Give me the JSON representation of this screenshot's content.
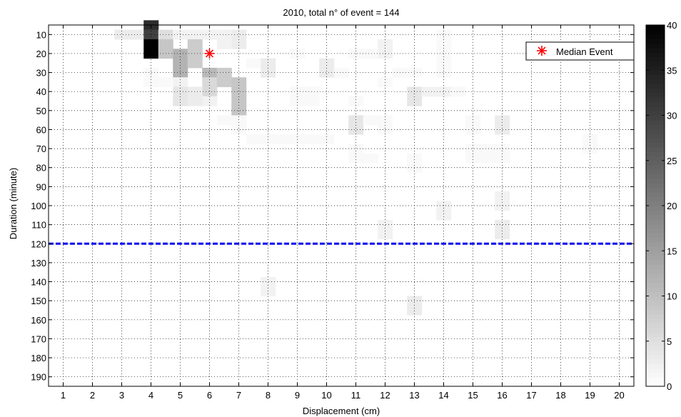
{
  "chart_data": {
    "type": "heatmap",
    "title": "2010, total n° of event = 144",
    "xlabel": "Displacement (cm)",
    "ylabel": "Duration (minute)",
    "x_categories": [
      1,
      2,
      3,
      4,
      5,
      6,
      7,
      8,
      9,
      10,
      11,
      12,
      13,
      14,
      15,
      16,
      17,
      18,
      19,
      20
    ],
    "y_categories": [
      10,
      20,
      30,
      40,
      50,
      60,
      70,
      80,
      90,
      100,
      110,
      120,
      130,
      140,
      150,
      160,
      170,
      180,
      190
    ],
    "xlim": [
      0.5,
      20.5
    ],
    "ylim": [
      5,
      195
    ],
    "y_reversed": true,
    "grid": true,
    "cells": [
      {
        "x": 3,
        "y": 10,
        "v": 3
      },
      {
        "x": 3.5,
        "y": 10,
        "v": 3
      },
      {
        "x": 4,
        "y": 5,
        "v": 33
      },
      {
        "x": 4,
        "y": 10,
        "v": 30
      },
      {
        "x": 4,
        "y": 15,
        "v": 40
      },
      {
        "x": 4,
        "y": 20,
        "v": 40
      },
      {
        "x": 4.5,
        "y": 10,
        "v": 5
      },
      {
        "x": 4.5,
        "y": 15,
        "v": 9
      },
      {
        "x": 4.5,
        "y": 20,
        "v": 9
      },
      {
        "x": 5,
        "y": 10,
        "v": 2
      },
      {
        "x": 5,
        "y": 20,
        "v": 12
      },
      {
        "x": 5,
        "y": 25,
        "v": 12
      },
      {
        "x": 5,
        "y": 30,
        "v": 12
      },
      {
        "x": 5.5,
        "y": 10,
        "v": 2
      },
      {
        "x": 5.5,
        "y": 15,
        "v": 8
      },
      {
        "x": 5.5,
        "y": 20,
        "v": 8
      },
      {
        "x": 5.5,
        "y": 25,
        "v": 8
      },
      {
        "x": 6,
        "y": 30,
        "v": 11
      },
      {
        "x": 6,
        "y": 35,
        "v": 6
      },
      {
        "x": 6,
        "y": 40,
        "v": 6
      },
      {
        "x": 6.5,
        "y": 30,
        "v": 8
      },
      {
        "x": 6.5,
        "y": 35,
        "v": 8
      },
      {
        "x": 7,
        "y": 10,
        "v": 3
      },
      {
        "x": 7,
        "y": 15,
        "v": 3
      },
      {
        "x": 7,
        "y": 35,
        "v": 9
      },
      {
        "x": 7,
        "y": 40,
        "v": 9
      },
      {
        "x": 7,
        "y": 45,
        "v": 9
      },
      {
        "x": 7,
        "y": 50,
        "v": 9
      },
      {
        "x": 5,
        "y": 35,
        "v": 2
      },
      {
        "x": 5,
        "y": 40,
        "v": 4
      },
      {
        "x": 5,
        "y": 45,
        "v": 4
      },
      {
        "x": 5.5,
        "y": 40,
        "v": 3
      },
      {
        "x": 5.5,
        "y": 45,
        "v": 3
      },
      {
        "x": 6,
        "y": 45,
        "v": 2
      },
      {
        "x": 4,
        "y": 30,
        "v": 1
      },
      {
        "x": 4,
        "y": 35,
        "v": 1
      },
      {
        "x": 4.5,
        "y": 35,
        "v": 1
      },
      {
        "x": 6.5,
        "y": 10,
        "v": 2
      },
      {
        "x": 6,
        "y": 10,
        "v": 2
      },
      {
        "x": 6.5,
        "y": 15,
        "v": 2
      },
      {
        "x": 6.5,
        "y": 55,
        "v": 1
      },
      {
        "x": 7,
        "y": 55,
        "v": 1
      },
      {
        "x": 7,
        "y": 60,
        "v": 1
      },
      {
        "x": 7.5,
        "y": 25,
        "v": 1
      },
      {
        "x": 8,
        "y": 25,
        "v": 3
      },
      {
        "x": 8,
        "y": 30,
        "v": 3
      },
      {
        "x": 7.5,
        "y": 65,
        "v": 1
      },
      {
        "x": 8,
        "y": 65,
        "v": 1
      },
      {
        "x": 8.5,
        "y": 65,
        "v": 1
      },
      {
        "x": 9,
        "y": 20,
        "v": 1
      },
      {
        "x": 9,
        "y": 40,
        "v": 1
      },
      {
        "x": 9,
        "y": 45,
        "v": 1
      },
      {
        "x": 9,
        "y": 65,
        "v": 1
      },
      {
        "x": 9.5,
        "y": 65,
        "v": 1
      },
      {
        "x": 10,
        "y": 65,
        "v": 1
      },
      {
        "x": 10,
        "y": 25,
        "v": 3
      },
      {
        "x": 10,
        "y": 30,
        "v": 3
      },
      {
        "x": 10.5,
        "y": 30,
        "v": 1
      },
      {
        "x": 9.5,
        "y": 40,
        "v": 1
      },
      {
        "x": 9.5,
        "y": 45,
        "v": 1
      },
      {
        "x": 11,
        "y": 20,
        "v": 1
      },
      {
        "x": 11,
        "y": 45,
        "v": 1
      },
      {
        "x": 11,
        "y": 55,
        "v": 4
      },
      {
        "x": 11,
        "y": 60,
        "v": 4
      },
      {
        "x": 11.5,
        "y": 55,
        "v": 1
      },
      {
        "x": 11,
        "y": 70,
        "v": 1
      },
      {
        "x": 11,
        "y": 75,
        "v": 1
      },
      {
        "x": 11.5,
        "y": 75,
        "v": 1
      },
      {
        "x": 12,
        "y": 15,
        "v": 2
      },
      {
        "x": 12,
        "y": 20,
        "v": 2
      },
      {
        "x": 11.5,
        "y": 20,
        "v": 1
      },
      {
        "x": 12,
        "y": 35,
        "v": 1
      },
      {
        "x": 12,
        "y": 55,
        "v": 1
      },
      {
        "x": 12,
        "y": 60,
        "v": 1
      },
      {
        "x": 12,
        "y": 110,
        "v": 2
      },
      {
        "x": 12,
        "y": 115,
        "v": 2
      },
      {
        "x": 13,
        "y": 40,
        "v": 4
      },
      {
        "x": 13,
        "y": 45,
        "v": 4
      },
      {
        "x": 13.5,
        "y": 40,
        "v": 2
      },
      {
        "x": 12.5,
        "y": 30,
        "v": 1
      },
      {
        "x": 13,
        "y": 30,
        "v": 1
      },
      {
        "x": 13,
        "y": 75,
        "v": 1
      },
      {
        "x": 13,
        "y": 80,
        "v": 1
      },
      {
        "x": 13,
        "y": 150,
        "v": 3
      },
      {
        "x": 13,
        "y": 155,
        "v": 3
      },
      {
        "x": 14,
        "y": 10,
        "v": 1
      },
      {
        "x": 14,
        "y": 15,
        "v": 1
      },
      {
        "x": 14,
        "y": 20,
        "v": 1
      },
      {
        "x": 14,
        "y": 25,
        "v": 1
      },
      {
        "x": 14,
        "y": 30,
        "v": 1
      },
      {
        "x": 14,
        "y": 40,
        "v": 2
      },
      {
        "x": 14.5,
        "y": 40,
        "v": 1
      },
      {
        "x": 14,
        "y": 100,
        "v": 2
      },
      {
        "x": 14,
        "y": 105,
        "v": 2
      },
      {
        "x": 15,
        "y": 55,
        "v": 1
      },
      {
        "x": 15,
        "y": 60,
        "v": 1
      },
      {
        "x": 15,
        "y": 70,
        "v": 1
      },
      {
        "x": 15,
        "y": 75,
        "v": 1
      },
      {
        "x": 15.5,
        "y": 70,
        "v": 1
      },
      {
        "x": 15.5,
        "y": 75,
        "v": 1
      },
      {
        "x": 16,
        "y": 55,
        "v": 3
      },
      {
        "x": 16,
        "y": 60,
        "v": 3
      },
      {
        "x": 16,
        "y": 70,
        "v": 1
      },
      {
        "x": 16,
        "y": 75,
        "v": 1
      },
      {
        "x": 16,
        "y": 95,
        "v": 2
      },
      {
        "x": 16,
        "y": 100,
        "v": 2
      },
      {
        "x": 16,
        "y": 110,
        "v": 3
      },
      {
        "x": 16,
        "y": 115,
        "v": 3
      },
      {
        "x": 19,
        "y": 65,
        "v": 1
      },
      {
        "x": 19,
        "y": 70,
        "v": 1
      },
      {
        "x": 8,
        "y": 140,
        "v": 2
      },
      {
        "x": 8,
        "y": 145,
        "v": 2
      }
    ],
    "cell_width": 0.5,
    "cell_height": 5,
    "colorbar": {
      "min": 0,
      "max": 40,
      "ticks": [
        0,
        5,
        10,
        15,
        20,
        25,
        30,
        35,
        40
      ],
      "colormap": "gray-reversed"
    },
    "median_event": {
      "x": 6,
      "y": 20,
      "label": "Median Event",
      "color": "#ff0000"
    },
    "threshold_line": {
      "y": 120,
      "color": "#0000ee",
      "style": "dashed"
    },
    "legend": {
      "placement": "top-right",
      "entries": [
        "Median Event"
      ]
    }
  }
}
